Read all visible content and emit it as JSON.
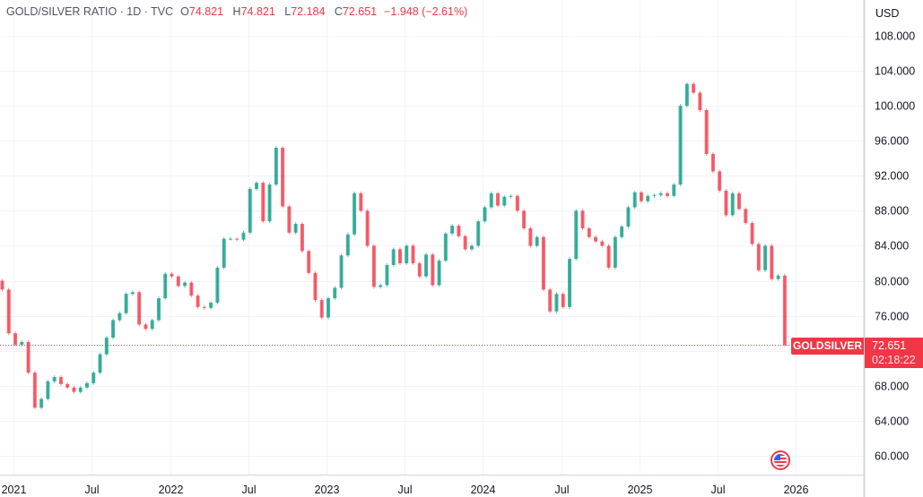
{
  "header": {
    "title": "GOLD/SILVER RATIO · 1D · TVC",
    "open_label": "O",
    "open": "74.821",
    "high_label": "H",
    "high": "74.821",
    "low_label": "L",
    "low": "72.184",
    "close_label": "C",
    "close": "72.651",
    "change": "−1.948 (−2.61%)"
  },
  "currency": "USD",
  "last_price": {
    "symbol": "GOLDSILVER",
    "price": "72.651",
    "countdown": "02:18:22"
  },
  "colors": {
    "up": "#089981",
    "down": "#f23645",
    "grid": "#f0f3fa",
    "axis_line": "#d1d4dc"
  },
  "chart_data": {
    "type": "candlestick",
    "title": "GOLD/SILVER RATIO",
    "interval_note": "two closes per month (first half, second half)",
    "ylim": [
      58,
      108.5
    ],
    "grid": true,
    "y_ticks": [
      "108.000",
      "104.000",
      "100.000",
      "96.000",
      "92.000",
      "88.000",
      "84.000",
      "80.000",
      "76.000",
      "68.000",
      "64.000",
      "60.000"
    ],
    "x_ticks": [
      {
        "label": "2021",
        "date": "2021-01"
      },
      {
        "label": "Jul",
        "date": "2021-07"
      },
      {
        "label": "2022",
        "date": "2022-01"
      },
      {
        "label": "Jul",
        "date": "2022-07"
      },
      {
        "label": "2023",
        "date": "2023-01"
      },
      {
        "label": "Jul",
        "date": "2023-07"
      },
      {
        "label": "2024",
        "date": "2024-01"
      },
      {
        "label": "Jul",
        "date": "2024-07"
      },
      {
        "label": "2025",
        "date": "2025-01"
      },
      {
        "label": "Jul",
        "date": "2025-07"
      },
      {
        "label": "2026",
        "date": "2026-01"
      }
    ],
    "closes": {
      "2020-12": [
        79,
        74
      ],
      "2021-01": [
        72.7,
        73
      ],
      "2021-02": [
        69.5,
        65.5
      ],
      "2021-03": [
        66.5,
        68.5
      ],
      "2021-04": [
        69,
        68.2
      ],
      "2021-05": [
        67.8,
        67.3
      ],
      "2021-06": [
        67.8,
        68.3
      ],
      "2021-07": [
        69.5,
        71.6
      ],
      "2021-08": [
        73.5,
        75.5
      ],
      "2021-09": [
        76.3,
        78.5
      ],
      "2021-10": [
        78.7,
        75
      ],
      "2021-11": [
        74.5,
        75.5
      ],
      "2021-12": [
        78,
        80.8
      ],
      "2022-01": [
        80.5,
        79.4
      ],
      "2022-02": [
        79.8,
        78.3
      ],
      "2022-03": [
        77,
        76.9
      ],
      "2022-04": [
        77.5,
        81.5
      ],
      "2022-05": [
        84.8,
        84.8
      ],
      "2022-06": [
        84.7,
        85.5
      ],
      "2022-07": [
        90.5,
        91.2
      ],
      "2022-08": [
        86.8,
        91
      ],
      "2022-09": [
        95.2,
        88.5
      ],
      "2022-10": [
        85.5,
        86.5
      ],
      "2022-11": [
        83.4,
        80.9
      ],
      "2022-12": [
        77.8,
        75.8
      ],
      "2023-01": [
        78,
        79.2
      ],
      "2023-02": [
        82.9,
        85.3
      ],
      "2023-03": [
        90,
        88
      ],
      "2023-04": [
        84,
        79.3
      ],
      "2023-05": [
        79.5,
        81.8
      ],
      "2023-06": [
        83.6,
        82
      ],
      "2023-07": [
        84,
        82
      ],
      "2023-08": [
        80.5,
        83
      ],
      "2023-09": [
        79.5,
        82.3
      ],
      "2023-10": [
        85.4,
        86.3
      ],
      "2023-11": [
        85.1,
        83.6
      ],
      "2023-12": [
        84,
        86.8
      ],
      "2024-01": [
        88.4,
        90
      ],
      "2024-02": [
        88.6,
        89.6
      ],
      "2024-03": [
        89.7,
        88
      ],
      "2024-04": [
        86,
        84
      ],
      "2024-05": [
        85,
        79
      ],
      "2024-06": [
        76.5,
        78.5
      ],
      "2024-07": [
        77,
        82.5
      ],
      "2024-08": [
        88,
        86
      ],
      "2024-09": [
        85,
        84.5
      ],
      "2024-10": [
        84,
        81.5
      ],
      "2024-11": [
        85,
        86.2
      ],
      "2024-12": [
        88.4,
        90.1
      ],
      "2025-01": [
        89.1,
        89.7
      ],
      "2025-02": [
        89.8,
        90
      ],
      "2025-03": [
        89.7,
        91
      ],
      "2025-04": [
        100,
        102.5
      ],
      "2025-05": [
        101.5,
        99.5
      ],
      "2025-06": [
        94.5,
        92.5
      ],
      "2025-07": [
        90.3,
        87.5
      ],
      "2025-08": [
        90,
        88.2
      ],
      "2025-09": [
        86.6,
        84.2
      ],
      "2025-10": [
        81.2,
        84
      ],
      "2025-11": [
        80.2,
        80.6
      ],
      "2025-12": [
        72.651
      ]
    }
  }
}
